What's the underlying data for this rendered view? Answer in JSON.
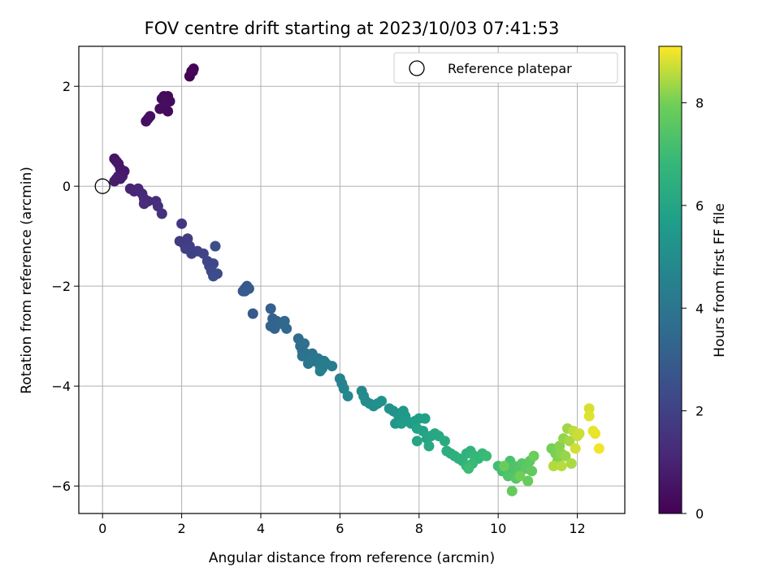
{
  "chart_data": {
    "type": "scatter",
    "title": "FOV centre drift starting at 2023/10/03 07:41:53",
    "xlabel": "Angular distance from reference (arcmin)",
    "ylabel": "Rotation from reference (arcmin)",
    "xlim": [
      -0.6,
      13.2
    ],
    "ylim": [
      -6.55,
      2.8
    ],
    "xticks": [
      "0",
      "2",
      "4",
      "6",
      "8",
      "10",
      "12"
    ],
    "yticks": [
      "2",
      "0",
      "−2",
      "−4",
      "−6"
    ],
    "grid": true,
    "legend": {
      "position": "top-right",
      "entries": [
        "Reference platepar"
      ]
    },
    "colorbar": {
      "label": "Hours from first FF file",
      "range": [
        0,
        9.1
      ],
      "ticks": [
        "0",
        "2",
        "4",
        "6",
        "8"
      ],
      "colormap": "viridis"
    },
    "reference_point": {
      "x": 0,
      "y": 0
    },
    "points": [
      {
        "x": 2.2,
        "y": 2.2,
        "c": 0.0
      },
      {
        "x": 2.25,
        "y": 2.3,
        "c": 0.05
      },
      {
        "x": 2.3,
        "y": 2.35,
        "c": 0.1
      },
      {
        "x": 2.28,
        "y": 2.3,
        "c": 0.12
      },
      {
        "x": 1.55,
        "y": 1.8,
        "c": 0.2
      },
      {
        "x": 1.6,
        "y": 1.75,
        "c": 0.22
      },
      {
        "x": 1.65,
        "y": 1.8,
        "c": 0.24
      },
      {
        "x": 1.7,
        "y": 1.7,
        "c": 0.26
      },
      {
        "x": 1.5,
        "y": 1.75,
        "c": 0.28
      },
      {
        "x": 1.45,
        "y": 1.55,
        "c": 0.3
      },
      {
        "x": 1.65,
        "y": 1.5,
        "c": 0.32
      },
      {
        "x": 1.6,
        "y": 1.65,
        "c": 0.34
      },
      {
        "x": 1.15,
        "y": 1.35,
        "c": 0.4
      },
      {
        "x": 1.1,
        "y": 1.3,
        "c": 0.42
      },
      {
        "x": 1.2,
        "y": 1.4,
        "c": 0.44
      },
      {
        "x": 0.3,
        "y": 0.55,
        "c": 0.55
      },
      {
        "x": 0.35,
        "y": 0.5,
        "c": 0.58
      },
      {
        "x": 0.4,
        "y": 0.45,
        "c": 0.6
      },
      {
        "x": 0.45,
        "y": 0.35,
        "c": 0.62
      },
      {
        "x": 0.5,
        "y": 0.3,
        "c": 0.65
      },
      {
        "x": 0.55,
        "y": 0.3,
        "c": 0.68
      },
      {
        "x": 0.4,
        "y": 0.2,
        "c": 0.7
      },
      {
        "x": 0.5,
        "y": 0.2,
        "c": 0.72
      },
      {
        "x": 0.35,
        "y": 0.15,
        "c": 0.75
      },
      {
        "x": 0.3,
        "y": 0.1,
        "c": 0.78
      },
      {
        "x": 0.45,
        "y": 0.15,
        "c": 0.8
      },
      {
        "x": 0.7,
        "y": -0.05,
        "c": 1.0
      },
      {
        "x": 0.8,
        "y": -0.1,
        "c": 1.05
      },
      {
        "x": 0.9,
        "y": -0.05,
        "c": 1.1
      },
      {
        "x": 1.0,
        "y": -0.15,
        "c": 1.15
      },
      {
        "x": 1.05,
        "y": -0.25,
        "c": 1.2
      },
      {
        "x": 1.15,
        "y": -0.3,
        "c": 1.25
      },
      {
        "x": 1.05,
        "y": -0.35,
        "c": 1.3
      },
      {
        "x": 1.35,
        "y": -0.3,
        "c": 1.35
      },
      {
        "x": 1.4,
        "y": -0.4,
        "c": 1.4
      },
      {
        "x": 1.5,
        "y": -0.55,
        "c": 1.45
      },
      {
        "x": 2.0,
        "y": -0.75,
        "c": 1.7
      },
      {
        "x": 1.95,
        "y": -1.1,
        "c": 1.75
      },
      {
        "x": 2.05,
        "y": -1.15,
        "c": 1.8
      },
      {
        "x": 2.15,
        "y": -1.05,
        "c": 1.85
      },
      {
        "x": 2.2,
        "y": -1.2,
        "c": 1.9
      },
      {
        "x": 2.1,
        "y": -1.25,
        "c": 1.95
      },
      {
        "x": 2.25,
        "y": -1.35,
        "c": 2.0
      },
      {
        "x": 2.4,
        "y": -1.3,
        "c": 2.05
      },
      {
        "x": 2.55,
        "y": -1.35,
        "c": 2.1
      },
      {
        "x": 2.65,
        "y": -1.5,
        "c": 2.15
      },
      {
        "x": 2.7,
        "y": -1.6,
        "c": 2.2
      },
      {
        "x": 2.8,
        "y": -1.55,
        "c": 2.25
      },
      {
        "x": 2.75,
        "y": -1.7,
        "c": 2.3
      },
      {
        "x": 2.9,
        "y": -1.75,
        "c": 2.35
      },
      {
        "x": 2.8,
        "y": -1.8,
        "c": 2.4
      },
      {
        "x": 2.85,
        "y": -1.2,
        "c": 2.45
      },
      {
        "x": 3.55,
        "y": -2.1,
        "c": 2.7
      },
      {
        "x": 3.6,
        "y": -2.05,
        "c": 2.75
      },
      {
        "x": 3.65,
        "y": -2.0,
        "c": 2.8
      },
      {
        "x": 3.7,
        "y": -2.05,
        "c": 2.85
      },
      {
        "x": 3.8,
        "y": -2.55,
        "c": 2.9
      },
      {
        "x": 3.6,
        "y": -2.1,
        "c": 2.95
      },
      {
        "x": 4.25,
        "y": -2.45,
        "c": 3.1
      },
      {
        "x": 4.3,
        "y": -2.65,
        "c": 3.15
      },
      {
        "x": 4.4,
        "y": -2.7,
        "c": 3.2
      },
      {
        "x": 4.25,
        "y": -2.8,
        "c": 3.25
      },
      {
        "x": 4.35,
        "y": -2.85,
        "c": 3.3
      },
      {
        "x": 4.5,
        "y": -2.75,
        "c": 3.35
      },
      {
        "x": 4.6,
        "y": -2.7,
        "c": 3.4
      },
      {
        "x": 4.65,
        "y": -2.85,
        "c": 3.45
      },
      {
        "x": 4.95,
        "y": -3.05,
        "c": 3.6
      },
      {
        "x": 5.0,
        "y": -3.2,
        "c": 3.65
      },
      {
        "x": 5.05,
        "y": -3.3,
        "c": 3.7
      },
      {
        "x": 5.1,
        "y": -3.15,
        "c": 3.75
      },
      {
        "x": 5.15,
        "y": -3.35,
        "c": 3.8
      },
      {
        "x": 5.05,
        "y": -3.4,
        "c": 3.85
      },
      {
        "x": 5.25,
        "y": -3.45,
        "c": 3.9
      },
      {
        "x": 5.3,
        "y": -3.35,
        "c": 3.95
      },
      {
        "x": 5.2,
        "y": -3.55,
        "c": 4.0
      },
      {
        "x": 5.35,
        "y": -3.5,
        "c": 4.05
      },
      {
        "x": 5.45,
        "y": -3.45,
        "c": 4.1
      },
      {
        "x": 5.5,
        "y": -3.6,
        "c": 4.15
      },
      {
        "x": 5.55,
        "y": -3.65,
        "c": 4.2
      },
      {
        "x": 5.6,
        "y": -3.5,
        "c": 4.25
      },
      {
        "x": 5.65,
        "y": -3.55,
        "c": 4.3
      },
      {
        "x": 5.8,
        "y": -3.6,
        "c": 4.35
      },
      {
        "x": 5.5,
        "y": -3.7,
        "c": 4.4
      },
      {
        "x": 6.0,
        "y": -3.85,
        "c": 4.55
      },
      {
        "x": 6.05,
        "y": -3.95,
        "c": 4.6
      },
      {
        "x": 6.1,
        "y": -4.05,
        "c": 4.65
      },
      {
        "x": 6.2,
        "y": -4.2,
        "c": 4.7
      },
      {
        "x": 6.55,
        "y": -4.1,
        "c": 4.85
      },
      {
        "x": 6.6,
        "y": -4.2,
        "c": 4.9
      },
      {
        "x": 6.65,
        "y": -4.3,
        "c": 4.95
      },
      {
        "x": 6.75,
        "y": -4.35,
        "c": 5.0
      },
      {
        "x": 6.85,
        "y": -4.4,
        "c": 5.05
      },
      {
        "x": 6.95,
        "y": -4.35,
        "c": 5.1
      },
      {
        "x": 7.05,
        "y": -4.3,
        "c": 5.15
      },
      {
        "x": 7.25,
        "y": -4.45,
        "c": 5.2
      },
      {
        "x": 7.35,
        "y": -4.5,
        "c": 5.25
      },
      {
        "x": 7.45,
        "y": -4.55,
        "c": 5.3
      },
      {
        "x": 7.5,
        "y": -4.65,
        "c": 5.35
      },
      {
        "x": 7.4,
        "y": -4.75,
        "c": 5.4
      },
      {
        "x": 7.6,
        "y": -4.5,
        "c": 5.45
      },
      {
        "x": 7.65,
        "y": -4.6,
        "c": 5.5
      },
      {
        "x": 7.7,
        "y": -4.7,
        "c": 5.55
      },
      {
        "x": 7.55,
        "y": -4.75,
        "c": 5.6
      },
      {
        "x": 7.8,
        "y": -4.75,
        "c": 5.65
      },
      {
        "x": 7.9,
        "y": -4.7,
        "c": 5.7
      },
      {
        "x": 8.0,
        "y": -4.65,
        "c": 5.75
      },
      {
        "x": 8.15,
        "y": -4.65,
        "c": 5.8
      },
      {
        "x": 7.95,
        "y": -4.85,
        "c": 5.85
      },
      {
        "x": 8.1,
        "y": -4.9,
        "c": 5.9
      },
      {
        "x": 8.2,
        "y": -5.05,
        "c": 5.95
      },
      {
        "x": 7.95,
        "y": -5.1,
        "c": 6.0
      },
      {
        "x": 8.3,
        "y": -5.0,
        "c": 6.05
      },
      {
        "x": 8.4,
        "y": -4.95,
        "c": 6.1
      },
      {
        "x": 8.5,
        "y": -5.0,
        "c": 6.15
      },
      {
        "x": 8.25,
        "y": -5.2,
        "c": 6.2
      },
      {
        "x": 8.65,
        "y": -5.1,
        "c": 6.25
      },
      {
        "x": 8.7,
        "y": -5.3,
        "c": 6.35
      },
      {
        "x": 8.8,
        "y": -5.35,
        "c": 6.4
      },
      {
        "x": 8.9,
        "y": -5.4,
        "c": 6.45
      },
      {
        "x": 9.0,
        "y": -5.45,
        "c": 6.5
      },
      {
        "x": 9.1,
        "y": -5.5,
        "c": 6.55
      },
      {
        "x": 9.2,
        "y": -5.35,
        "c": 6.6
      },
      {
        "x": 9.3,
        "y": -5.3,
        "c": 6.65
      },
      {
        "x": 9.2,
        "y": -5.6,
        "c": 6.7
      },
      {
        "x": 9.4,
        "y": -5.4,
        "c": 6.75
      },
      {
        "x": 9.5,
        "y": -5.45,
        "c": 6.8
      },
      {
        "x": 9.6,
        "y": -5.35,
        "c": 6.85
      },
      {
        "x": 9.35,
        "y": -5.55,
        "c": 6.9
      },
      {
        "x": 9.7,
        "y": -5.4,
        "c": 6.95
      },
      {
        "x": 9.25,
        "y": -5.65,
        "c": 7.0
      },
      {
        "x": 10.0,
        "y": -5.6,
        "c": 7.1
      },
      {
        "x": 10.1,
        "y": -5.7,
        "c": 7.15
      },
      {
        "x": 10.2,
        "y": -5.65,
        "c": 7.2
      },
      {
        "x": 10.3,
        "y": -5.5,
        "c": 7.25
      },
      {
        "x": 10.35,
        "y": -5.75,
        "c": 7.3
      },
      {
        "x": 10.4,
        "y": -5.6,
        "c": 7.35
      },
      {
        "x": 10.25,
        "y": -5.8,
        "c": 7.4
      },
      {
        "x": 10.5,
        "y": -5.7,
        "c": 7.45
      },
      {
        "x": 10.6,
        "y": -5.55,
        "c": 7.5
      },
      {
        "x": 10.45,
        "y": -5.85,
        "c": 7.55
      },
      {
        "x": 10.7,
        "y": -5.65,
        "c": 7.6
      },
      {
        "x": 10.8,
        "y": -5.5,
        "c": 7.65
      },
      {
        "x": 10.85,
        "y": -5.7,
        "c": 7.7
      },
      {
        "x": 10.35,
        "y": -6.1,
        "c": 7.75
      },
      {
        "x": 10.75,
        "y": -5.9,
        "c": 7.8
      },
      {
        "x": 10.15,
        "y": -5.6,
        "c": 7.85
      },
      {
        "x": 10.9,
        "y": -5.4,
        "c": 7.9
      },
      {
        "x": 10.55,
        "y": -5.8,
        "c": 7.95
      },
      {
        "x": 11.35,
        "y": -5.25,
        "c": 8.0
      },
      {
        "x": 11.45,
        "y": -5.35,
        "c": 8.05
      },
      {
        "x": 11.5,
        "y": -5.5,
        "c": 8.1
      },
      {
        "x": 11.55,
        "y": -5.2,
        "c": 8.15
      },
      {
        "x": 11.6,
        "y": -5.35,
        "c": 8.2
      },
      {
        "x": 11.65,
        "y": -5.05,
        "c": 8.25
      },
      {
        "x": 11.7,
        "y": -5.4,
        "c": 8.3
      },
      {
        "x": 11.75,
        "y": -4.85,
        "c": 8.35
      },
      {
        "x": 11.8,
        "y": -5.1,
        "c": 8.4
      },
      {
        "x": 11.85,
        "y": -5.55,
        "c": 8.45
      },
      {
        "x": 11.4,
        "y": -5.6,
        "c": 8.5
      },
      {
        "x": 11.6,
        "y": -5.6,
        "c": 8.55
      },
      {
        "x": 11.9,
        "y": -4.9,
        "c": 8.6
      },
      {
        "x": 12.0,
        "y": -5.0,
        "c": 8.65
      },
      {
        "x": 12.05,
        "y": -4.95,
        "c": 8.7
      },
      {
        "x": 11.95,
        "y": -5.25,
        "c": 8.75
      },
      {
        "x": 12.3,
        "y": -4.45,
        "c": 8.8
      },
      {
        "x": 12.3,
        "y": -4.6,
        "c": 8.85
      },
      {
        "x": 12.4,
        "y": -4.9,
        "c": 8.9
      },
      {
        "x": 12.45,
        "y": -4.95,
        "c": 8.95
      },
      {
        "x": 12.55,
        "y": -5.25,
        "c": 9.0
      }
    ]
  }
}
